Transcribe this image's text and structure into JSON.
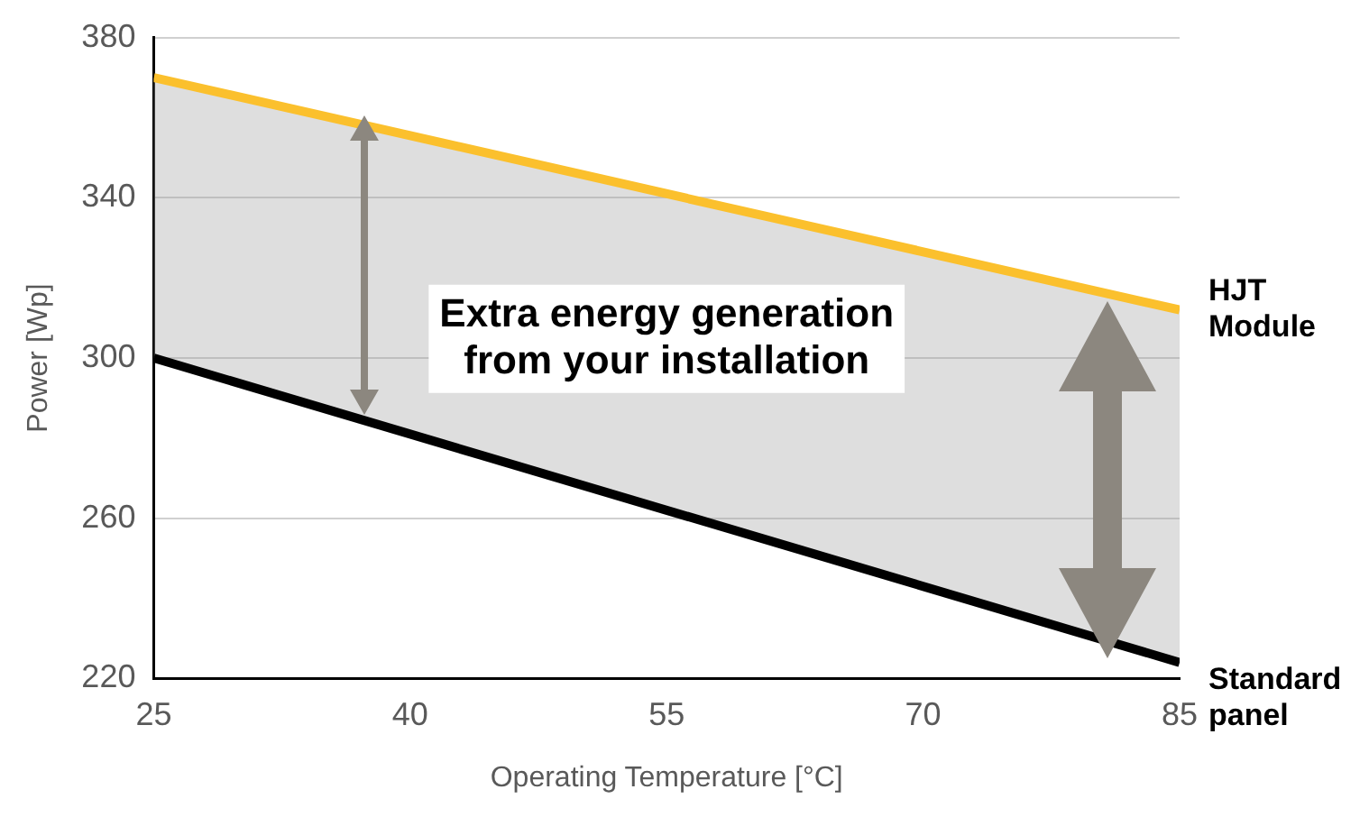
{
  "chart_data": {
    "type": "line",
    "xlabel": "Operating Temperature [°C]",
    "ylabel": "Power [Wp]",
    "x": [
      25,
      85
    ],
    "series": [
      {
        "name": "HJT Module",
        "color": "#fbc02d",
        "values": [
          370,
          312
        ],
        "lower": [
          300,
          224
        ],
        "upper": [
          370,
          312
        ]
      },
      {
        "name": "Standard panel",
        "color": "#000000",
        "values": [
          300,
          224
        ]
      }
    ],
    "xlim": [
      25,
      85
    ],
    "xticks": [
      25,
      40,
      55,
      70,
      85
    ],
    "ylim": [
      220,
      380
    ],
    "yticks": [
      220,
      260,
      300,
      340,
      380
    ],
    "grid": "y",
    "legend": false,
    "marker": "none",
    "line_style": "solid",
    "annotations": [
      "Extra energy generation from your installation"
    ]
  }
}
